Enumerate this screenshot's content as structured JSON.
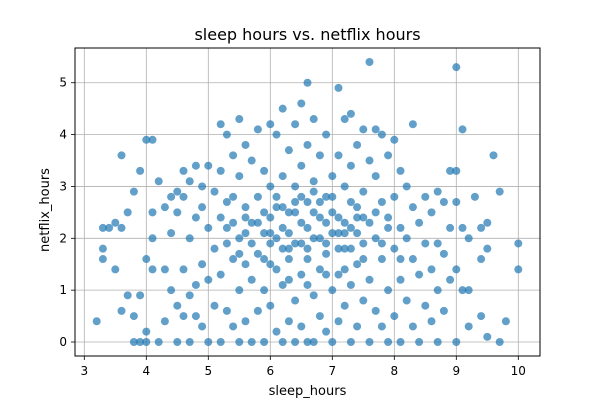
{
  "chart_data": {
    "type": "scatter",
    "title": "sleep hours vs. netflix hours",
    "xlabel": "sleep_hours",
    "ylabel": "netflix_hours",
    "xlim": [
      2.85,
      10.35
    ],
    "ylim": [
      -0.27,
      5.67
    ],
    "xticks": [
      3,
      4,
      5,
      6,
      7,
      8,
      9,
      10
    ],
    "yticks": [
      0,
      1,
      2,
      3,
      4,
      5
    ],
    "grid": true,
    "marker_color": "#1f77b4",
    "marker_alpha": 0.7,
    "series": [
      {
        "points": [
          [
            3.2,
            0.4
          ],
          [
            3.3,
            1.8
          ],
          [
            3.3,
            1.6
          ],
          [
            3.3,
            2.2
          ],
          [
            3.4,
            2.2
          ],
          [
            3.5,
            2.3
          ],
          [
            3.5,
            1.4
          ],
          [
            3.6,
            2.2
          ],
          [
            3.6,
            3.6
          ],
          [
            3.6,
            0.6
          ],
          [
            3.7,
            2.5
          ],
          [
            3.7,
            0.9
          ],
          [
            3.8,
            2.9
          ],
          [
            3.8,
            0.5
          ],
          [
            3.8,
            0
          ],
          [
            3.9,
            3.3
          ],
          [
            3.9,
            0.9
          ],
          [
            3.9,
            0
          ],
          [
            4.0,
            3.9
          ],
          [
            4.0,
            1.6
          ],
          [
            4.0,
            0.2
          ],
          [
            4.0,
            0
          ],
          [
            4.1,
            3.9
          ],
          [
            4.1,
            2.5
          ],
          [
            4.1,
            2.0
          ],
          [
            4.1,
            1.4
          ],
          [
            4.2,
            3.1
          ],
          [
            4.2,
            0
          ],
          [
            4.3,
            2.6
          ],
          [
            4.3,
            1.4
          ],
          [
            4.3,
            0.4
          ],
          [
            4.4,
            2.8
          ],
          [
            4.4,
            2.1
          ],
          [
            4.4,
            1.0
          ],
          [
            4.5,
            2.9
          ],
          [
            4.5,
            2.5
          ],
          [
            4.5,
            0.7
          ],
          [
            4.5,
            0
          ],
          [
            4.6,
            3.3
          ],
          [
            4.6,
            2.8
          ],
          [
            4.6,
            1.4
          ],
          [
            4.6,
            0.5
          ],
          [
            4.7,
            3.1
          ],
          [
            4.7,
            2.0
          ],
          [
            4.7,
            0.9
          ],
          [
            4.7,
            0
          ],
          [
            4.8,
            3.4
          ],
          [
            4.8,
            2.4
          ],
          [
            4.8,
            1.1
          ],
          [
            4.8,
            0.5
          ],
          [
            4.9,
            3.0
          ],
          [
            4.9,
            2.6
          ],
          [
            4.9,
            1.5
          ],
          [
            4.9,
            0.3
          ],
          [
            5.0,
            3.4
          ],
          [
            5.0,
            2.2
          ],
          [
            5.0,
            1.2
          ],
          [
            5.0,
            0
          ],
          [
            5.1,
            2.9
          ],
          [
            5.1,
            1.8
          ],
          [
            5.1,
            0.7
          ],
          [
            5.2,
            4.2
          ],
          [
            5.2,
            3.3
          ],
          [
            5.2,
            2.4
          ],
          [
            5.2,
            1.3
          ],
          [
            5.2,
            0
          ],
          [
            5.3,
            4.0
          ],
          [
            5.3,
            2.7
          ],
          [
            5.3,
            1.9
          ],
          [
            5.3,
            0.6
          ],
          [
            5.4,
            3.6
          ],
          [
            5.4,
            2.3
          ],
          [
            5.4,
            1.6
          ],
          [
            5.4,
            0.3
          ],
          [
            5.5,
            4.3
          ],
          [
            5.5,
            3.2
          ],
          [
            5.5,
            2.0
          ],
          [
            5.5,
            1.0
          ],
          [
            5.5,
            0
          ],
          [
            5.6,
            3.8
          ],
          [
            5.6,
            2.6
          ],
          [
            5.6,
            1.5
          ],
          [
            5.6,
            0.4
          ],
          [
            5.7,
            3.5
          ],
          [
            5.7,
            2.3
          ],
          [
            5.7,
            1.2
          ],
          [
            5.7,
            0
          ],
          [
            5.8,
            4.1
          ],
          [
            5.8,
            2.8
          ],
          [
            5.8,
            1.7
          ],
          [
            5.8,
            0.6
          ],
          [
            5.9,
            3.3
          ],
          [
            5.9,
            2.1
          ],
          [
            5.9,
            1.0
          ],
          [
            5.9,
            0
          ],
          [
            6.0,
            4.2
          ],
          [
            6.0,
            3.0
          ],
          [
            6.0,
            1.9
          ],
          [
            6.0,
            0.7
          ],
          [
            6.1,
            4.0
          ],
          [
            6.1,
            2.6
          ],
          [
            6.1,
            1.4
          ],
          [
            6.1,
            0.2
          ],
          [
            6.2,
            4.5
          ],
          [
            6.2,
            3.2
          ],
          [
            6.2,
            2.2
          ],
          [
            6.2,
            1.1
          ],
          [
            6.2,
            0
          ],
          [
            6.3,
            3.7
          ],
          [
            6.3,
            2.5
          ],
          [
            6.3,
            1.6
          ],
          [
            6.3,
            0.4
          ],
          [
            6.4,
            4.2
          ],
          [
            6.4,
            3.0
          ],
          [
            6.4,
            1.9
          ],
          [
            6.4,
            0.8
          ],
          [
            6.4,
            0
          ],
          [
            6.5,
            4.6
          ],
          [
            6.5,
            3.4
          ],
          [
            6.5,
            2.3
          ],
          [
            6.5,
            1.3
          ],
          [
            6.5,
            0.3
          ],
          [
            6.6,
            5.0
          ],
          [
            6.6,
            3.8
          ],
          [
            6.6,
            2.7
          ],
          [
            6.6,
            1.6
          ],
          [
            6.6,
            0
          ],
          [
            6.7,
            4.3
          ],
          [
            6.7,
            3.1
          ],
          [
            6.7,
            2.0
          ],
          [
            6.7,
            0.9
          ],
          [
            6.7,
            0
          ],
          [
            6.8,
            3.6
          ],
          [
            6.8,
            2.4
          ],
          [
            6.8,
            1.4
          ],
          [
            6.8,
            0.5
          ],
          [
            6.9,
            4.0
          ],
          [
            6.9,
            2.8
          ],
          [
            6.9,
            1.7
          ],
          [
            6.9,
            0.2
          ],
          [
            7.0,
            3.2
          ],
          [
            7.0,
            2.1
          ],
          [
            7.0,
            1.0
          ],
          [
            7.0,
            0
          ],
          [
            7.1,
            4.9
          ],
          [
            7.1,
            3.6
          ],
          [
            7.1,
            2.4
          ],
          [
            7.1,
            1.3
          ],
          [
            7.1,
            0.4
          ],
          [
            7.2,
            4.3
          ],
          [
            7.2,
            3.0
          ],
          [
            7.2,
            1.8
          ],
          [
            7.2,
            0.7
          ],
          [
            7.3,
            4.4
          ],
          [
            7.3,
            3.4
          ],
          [
            7.3,
            2.2
          ],
          [
            7.3,
            1.1
          ],
          [
            7.3,
            0
          ],
          [
            7.4,
            3.8
          ],
          [
            7.4,
            2.6
          ],
          [
            7.4,
            1.5
          ],
          [
            7.4,
            0.3
          ],
          [
            7.5,
            4.1
          ],
          [
            7.5,
            2.9
          ],
          [
            7.5,
            1.9
          ],
          [
            7.5,
            0.8
          ],
          [
            7.6,
            5.4
          ],
          [
            7.6,
            3.5
          ],
          [
            7.6,
            2.3
          ],
          [
            7.6,
            1.2
          ],
          [
            7.6,
            0
          ],
          [
            7.7,
            4.1
          ],
          [
            7.7,
            3.2
          ],
          [
            7.7,
            2.0
          ],
          [
            7.7,
            0.6
          ],
          [
            7.8,
            4.0
          ],
          [
            7.8,
            2.7
          ],
          [
            7.8,
            1.6
          ],
          [
            7.8,
            0.3
          ],
          [
            7.9,
            3.6
          ],
          [
            7.9,
            2.4
          ],
          [
            7.9,
            1.0
          ],
          [
            7.9,
            0
          ],
          [
            8.0,
            3.9
          ],
          [
            8.0,
            2.8
          ],
          [
            8.0,
            1.8
          ],
          [
            8.0,
            0.5
          ],
          [
            8.1,
            3.3
          ],
          [
            8.1,
            2.2
          ],
          [
            8.1,
            1.2
          ],
          [
            8.1,
            0
          ],
          [
            8.2,
            3.0
          ],
          [
            8.2,
            2.0
          ],
          [
            8.2,
            0.8
          ],
          [
            8.3,
            4.2
          ],
          [
            8.3,
            2.6
          ],
          [
            8.3,
            1.6
          ],
          [
            8.3,
            0.3
          ],
          [
            8.4,
            2.3
          ],
          [
            8.4,
            1.3
          ],
          [
            8.4,
            0
          ],
          [
            8.5,
            2.8
          ],
          [
            8.5,
            1.9
          ],
          [
            8.5,
            0.7
          ],
          [
            8.6,
            2.5
          ],
          [
            8.6,
            1.4
          ],
          [
            8.6,
            0.4
          ],
          [
            8.7,
            2.9
          ],
          [
            8.7,
            1.9
          ],
          [
            8.7,
            1.0
          ],
          [
            8.7,
            0
          ],
          [
            8.8,
            2.7
          ],
          [
            8.8,
            1.7
          ],
          [
            8.8,
            0.6
          ],
          [
            8.9,
            3.3
          ],
          [
            8.9,
            2.2
          ],
          [
            8.9,
            1.2
          ],
          [
            9.0,
            5.3
          ],
          [
            9.0,
            3.3
          ],
          [
            9.0,
            2.7
          ],
          [
            9.0,
            1.4
          ],
          [
            9.0,
            0
          ],
          [
            9.1,
            4.1
          ],
          [
            9.1,
            2.2
          ],
          [
            9.1,
            1.0
          ],
          [
            9.2,
            2.0
          ],
          [
            9.2,
            1.0
          ],
          [
            9.2,
            0.3
          ],
          [
            9.3,
            2.8
          ],
          [
            9.4,
            2.2
          ],
          [
            9.4,
            1.6
          ],
          [
            9.4,
            0.5
          ],
          [
            9.5,
            2.3
          ],
          [
            9.5,
            1.8
          ],
          [
            9.5,
            0.1
          ],
          [
            9.6,
            3.6
          ],
          [
            9.7,
            2.9
          ],
          [
            9.7,
            0
          ],
          [
            9.8,
            0.4
          ],
          [
            10.0,
            1.9
          ],
          [
            10.0,
            1.4
          ],
          [
            5.4,
            2.8
          ],
          [
            5.6,
            2.1
          ],
          [
            5.9,
            2.5
          ],
          [
            6.0,
            2.4
          ],
          [
            6.1,
            2.0
          ],
          [
            6.2,
            1.8
          ],
          [
            6.3,
            2.1
          ],
          [
            6.4,
            2.5
          ],
          [
            6.5,
            1.9
          ],
          [
            6.6,
            2.2
          ],
          [
            6.7,
            2.5
          ],
          [
            6.8,
            2.0
          ],
          [
            6.9,
            2.3
          ],
          [
            7.0,
            2.5
          ],
          [
            7.1,
            1.8
          ],
          [
            7.2,
            2.3
          ],
          [
            7.3,
            1.8
          ],
          [
            7.4,
            2.1
          ],
          [
            7.5,
            2.4
          ],
          [
            6.0,
            1.5
          ],
          [
            6.3,
            1.2
          ],
          [
            6.6,
            1.1
          ],
          [
            6.9,
            1.3
          ],
          [
            7.2,
            1.4
          ],
          [
            5.8,
            2.3
          ],
          [
            6.1,
            2.8
          ],
          [
            6.4,
            2.7
          ],
          [
            6.7,
            2.9
          ],
          [
            7.0,
            2.8
          ],
          [
            7.3,
            2.7
          ],
          [
            5.5,
            1.7
          ],
          [
            5.7,
            1.9
          ],
          [
            5.9,
            1.6
          ],
          [
            6.2,
            2.6
          ],
          [
            6.5,
            2.8
          ],
          [
            6.8,
            2.7
          ],
          [
            7.1,
            2.1
          ],
          [
            7.4,
            2.4
          ],
          [
            7.7,
            2.5
          ],
          [
            7.8,
            1.9
          ],
          [
            5.3,
            2.2
          ],
          [
            5.6,
            2.4
          ],
          [
            6.0,
            2.1
          ],
          [
            6.3,
            1.8
          ],
          [
            6.6,
            1.8
          ],
          [
            6.9,
            1.9
          ],
          [
            7.2,
            2.1
          ],
          [
            7.5,
            1.6
          ],
          [
            7.9,
            2.2
          ],
          [
            8.1,
            1.6
          ]
        ]
      }
    ]
  }
}
